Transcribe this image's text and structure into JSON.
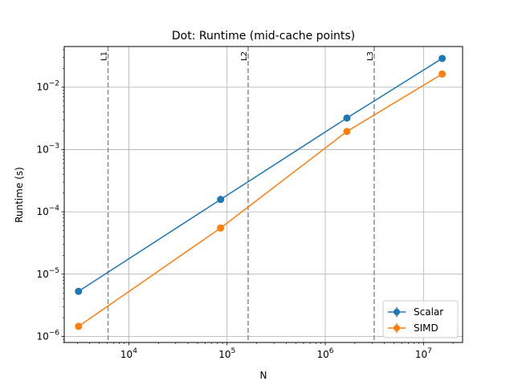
{
  "chart_data": {
    "type": "line",
    "title": "Dot: Runtime (mid-cache points)",
    "xlabel": "N",
    "ylabel": "Runtime (s)",
    "xscale": "log",
    "yscale": "log",
    "xlim": [
      2200,
      25000000
    ],
    "ylim": [
      8e-07,
      0.045
    ],
    "grid": true,
    "legend_position": "lower right",
    "x_ticks": [
      {
        "value": 10000,
        "base": "10",
        "exp": "4"
      },
      {
        "value": 100000,
        "base": "10",
        "exp": "5"
      },
      {
        "value": 1000000,
        "base": "10",
        "exp": "6"
      },
      {
        "value": 10000000,
        "base": "10",
        "exp": "7"
      }
    ],
    "y_ticks": [
      {
        "value": 1e-06,
        "base": "10",
        "exp": "−6"
      },
      {
        "value": 1e-05,
        "base": "10",
        "exp": "−5"
      },
      {
        "value": 0.0001,
        "base": "10",
        "exp": "−4"
      },
      {
        "value": 0.001,
        "base": "10",
        "exp": "−3"
      },
      {
        "value": 0.01,
        "base": "10",
        "exp": "−2"
      }
    ],
    "vlines": [
      {
        "label": "L1",
        "x": 6144
      },
      {
        "label": "L2",
        "x": 163840
      },
      {
        "label": "L3",
        "x": 3145728
      }
    ],
    "series": [
      {
        "name": "Scalar",
        "color": "#1f77b4",
        "x": [
          3072,
          86000,
          1660000,
          15500000
        ],
        "y": [
          5.3e-06,
          0.000158,
          0.0032,
          0.029
        ]
      },
      {
        "name": "SIMD",
        "color": "#ff7f0e",
        "x": [
          3072,
          86000,
          1660000,
          15500000
        ],
        "y": [
          1.45e-06,
          5.5e-05,
          0.00195,
          0.0163
        ]
      }
    ]
  }
}
